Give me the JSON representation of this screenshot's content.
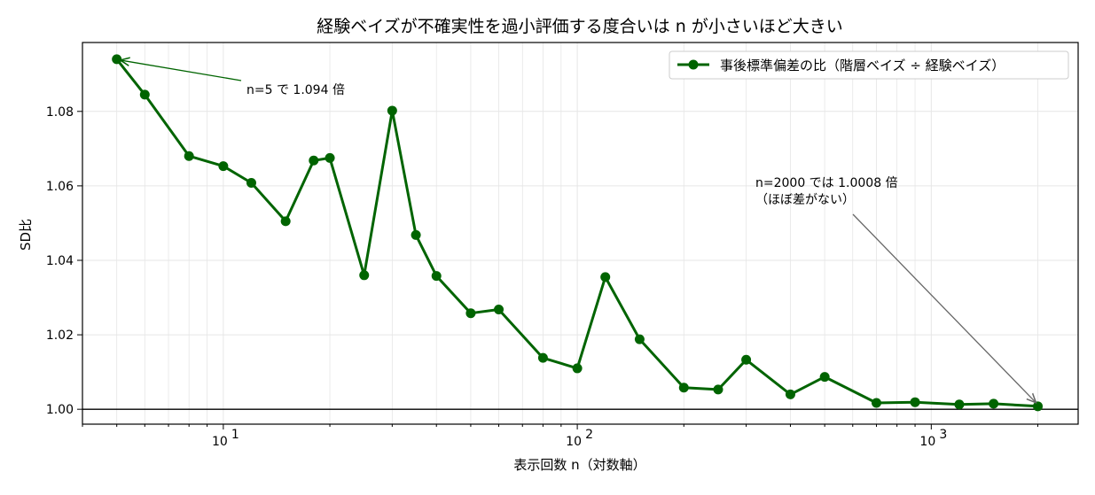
{
  "chart_data": {
    "type": "line",
    "title": "経験ベイズが不確実性を過小評価する度合いは n が小さいほど大きい",
    "xlabel": "表示回数 n（対数軸）",
    "ylabel": "SD比",
    "xscale": "log",
    "xlim": [
      4.0,
      2600
    ],
    "ylim": [
      0.996,
      1.0985
    ],
    "grid": true,
    "legend_position": "top-right",
    "reference_line_y": 1.0,
    "x_tick_labels": [
      "10",
      "10",
      "10"
    ],
    "x_tick_exponents": [
      "1",
      "2",
      "3"
    ],
    "y_tick_labels": [
      "1.00",
      "1.02",
      "1.04",
      "1.06",
      "1.08"
    ],
    "y_ticks": [
      1.0,
      1.02,
      1.04,
      1.06,
      1.08
    ],
    "series": [
      {
        "name": "事後標準偏差の比（階層ベイズ ÷ 経験ベイズ）",
        "color": "#006400",
        "x": [
          5,
          6,
          8,
          10,
          12,
          15,
          18,
          20,
          25,
          30,
          35,
          40,
          50,
          60,
          80,
          100,
          120,
          150,
          200,
          250,
          300,
          400,
          500,
          700,
          900,
          1200,
          1500,
          2000
        ],
        "y": [
          1.094,
          1.0845,
          1.068,
          1.0653,
          1.0608,
          1.0505,
          1.0668,
          1.0675,
          1.036,
          1.0802,
          1.0468,
          1.0358,
          1.0258,
          1.0268,
          1.0138,
          1.011,
          1.0355,
          1.0188,
          1.0058,
          1.0053,
          1.0133,
          1.004,
          1.0087,
          1.0017,
          1.0019,
          1.0013,
          1.0015,
          1.0008
        ]
      }
    ],
    "annotations": [
      {
        "id": "first",
        "lines": [
          "n=5 で 1.094 倍"
        ],
        "x": 5,
        "y": 1.094
      },
      {
        "id": "last",
        "lines": [
          "n=2000 では 1.0008 倍",
          "（ほぼ差がない）"
        ],
        "x": 2000,
        "y": 1.0008
      }
    ]
  }
}
